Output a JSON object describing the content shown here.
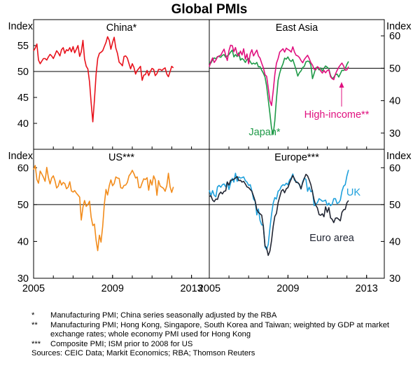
{
  "chart_data": {
    "type": "line",
    "title": "Global PMIs",
    "panels": [
      {
        "title": "China*",
        "position": "top-left",
        "ylabel": "Index",
        "ylim": [
          35,
          60
        ],
        "yticks": [
          40,
          45,
          50,
          55
        ],
        "series": [
          {
            "name": "China",
            "color": "#e8121c",
            "label": "",
            "start": 2005.0,
            "step": 0.0833,
            "values": [
              54,
              54.5,
              55.3,
              52.2,
              51.5,
              52,
              52.5,
              52.5,
              52.2,
              52.8,
              53.3,
              53,
              52.5,
              53.2,
              54,
              53.6,
              53,
              54.2,
              54.6,
              53.5,
              54.2,
              54,
              54.6,
              53.8,
              54.8,
              53.6,
              54.3,
              55,
              52.9,
              53.8,
              56,
              52.4,
              51,
              50.5,
              48,
              44,
              40.3,
              44.5,
              49.5,
              52.5,
              53.5,
              53.7,
              54,
              54.8,
              55.6,
              56.7,
              56,
              54.3,
              55.6,
              56.6,
              54.5,
              53.5,
              51.8,
              51.5,
              51.1,
              52.9,
              53,
              52.6,
              51.5,
              50.5,
              51.5,
              50.8,
              49.5,
              50.2,
              50.6,
              51,
              48.3,
              49.3,
              49.4,
              50.2,
              49.2,
              50,
              50.6,
              50.4,
              49.2,
              49.6,
              50.4,
              50.4,
              50.2,
              50.5,
              50.7,
              49.5,
              49,
              50,
              51,
              50.7
            ]
          }
        ]
      },
      {
        "title": "East Asia",
        "position": "top-right",
        "ylabel": "Index",
        "ylim": [
          25,
          65
        ],
        "yticks": [
          30,
          40,
          50,
          60
        ],
        "series": [
          {
            "name": "Japan*",
            "color": "#1f9a48",
            "label": "Japan*",
            "start": 2005.0,
            "step": 0.0833,
            "values": [
              52,
              51.6,
              52.6,
              53.2,
              52.9,
              53.6,
              53.6,
              53.4,
              54,
              54.2,
              53.4,
              53.8,
              54.2,
              55,
              55.6,
              53.5,
              54.2,
              53.6,
              54.8,
              52.5,
              53,
              52.6,
              51.8,
              52.7,
              53,
              52,
              51.3,
              51.6,
              51.3,
              51.8,
              50.4,
              50.5,
              49.4,
              48.5,
              47.3,
              44.5,
              40.3,
              36,
              31.5,
              29.6,
              33.8,
              40.5,
              46.3,
              48.5,
              50.2,
              51.4,
              53.1,
              52.8,
              53.5,
              52.5,
              52.1,
              52.7,
              51.1,
              49.5,
              47.6,
              48.6,
              49.2,
              50.2,
              50.6,
              52,
              52.2,
              52.1,
              51,
              46.8,
              48.4,
              50.1,
              50.3,
              49.5,
              50.1,
              49.2,
              50,
              50.7,
              50.3,
              49.8,
              47.8,
              46.8,
              47.2,
              48,
              48.2,
              47.3,
              48.3,
              49.4,
              49.3,
              49.9,
              51.2,
              52.1
            ]
          },
          {
            "name": "High-income**",
            "color": "#e0107f",
            "label": "High-income**",
            "start": 2005.0,
            "step": 0.0833,
            "values": [
              50.5,
              52,
              53.2,
              51.8,
              52.5,
              53.5,
              53.8,
              54,
              55,
              55.9,
              54,
              52.4,
              55.4,
              57.1,
              57,
              55.1,
              56.4,
              54.3,
              53.8,
              55.3,
              54.1,
              56,
              52.8,
              54.4,
              51.4,
              54.5,
              55.7,
              53.8,
              54.7,
              55.6,
              53.8,
              53.1,
              51.5,
              50.2,
              48,
              47.5,
              44,
              40,
              38.5,
              43,
              48,
              51.5,
              53,
              55,
              55.5,
              56,
              55,
              56.2,
              55.8,
              55.5,
              55,
              56.6,
              55,
              54,
              53.8,
              53.3,
              52.4,
              51.7,
              52.7,
              53.4,
              54,
              53,
              51.7,
              51,
              49.7,
              49.5,
              50.5,
              50.1,
              49.2,
              48.5,
              49.3,
              48.6,
              49.3,
              49.5,
              47.4,
              46.8,
              46.5,
              48.2,
              49.3,
              50.3,
              51,
              51.6,
              50.7,
              49.4,
              49.5,
              50.5
            ]
          }
        ]
      },
      {
        "title": "US***",
        "position": "bottom-left",
        "ylabel": "Index",
        "ylim": [
          30,
          65
        ],
        "yticks": [
          30,
          40,
          50,
          60
        ],
        "series": [
          {
            "name": "US",
            "color": "#f28c1c",
            "label": "",
            "start": 2005.0,
            "step": 0.0833,
            "values": [
              59.5,
              60.6,
              56.8,
              55.8,
              59.1,
              58.3,
              57.4,
              56.3,
              60.1,
              57.4,
              55.6,
              57.2,
              57.8,
              56.5,
              54.5,
              55,
              56.6,
              55.3,
              56,
              55.7,
              54.3,
              54.7,
              56.2,
              53.7,
              53.4,
              53.8,
              53.1,
              52.6,
              52,
              45.8,
              49.3,
              51.1,
              49.5,
              50,
              50.9,
              46.6,
              44.3,
              44.7,
              40.3,
              37.5,
              41.7,
              39.8,
              44.1,
              50,
              54.1,
              52.6,
              55.1,
              56.7,
              55.1,
              55.7,
              57.5,
              57.2,
              57.1,
              54.6,
              54.4,
              55.2,
              55.3,
              56,
              57.8,
              58.4,
              59.3,
              58.4,
              57.2,
              57.5,
              54.6,
              54.6,
              55.9,
              57,
              56.8,
              57.3,
              53.9,
              56.7,
              55.3,
              57.8,
              56.7,
              52.5,
              56.5,
              55,
              54.7,
              54.4,
              53.6,
              55.1,
              58.5,
              54.8,
              53.3,
              54.8
            ]
          }
        ]
      },
      {
        "title": "Europe***",
        "position": "bottom-right",
        "ylabel": "Index",
        "ylim": [
          30,
          65
        ],
        "yticks": [
          30,
          40,
          50,
          60
        ],
        "series": [
          {
            "name": "UK",
            "color": "#1ea0dc",
            "label": "UK",
            "start": 2005.0,
            "step": 0.0833,
            "values": [
              53.9,
              52.4,
              53.8,
              52.5,
              52.1,
              54.8,
              55.2,
              54.7,
              55.4,
              55.6,
              54.8,
              56.2,
              54.1,
              55.8,
              57.1,
              56.1,
              58.5,
              56.3,
              57.5,
              57.2,
              57.3,
              57.5,
              56.5,
              56.1,
              55.2,
              55.4,
              53.7,
              51.5,
              50.9,
              47.2,
              48.8,
              45.7,
              44.5,
              44.4,
              38.5,
              37.8,
              39.2,
              43.6,
              47.3,
              50.4,
              51.9,
              51.5,
              53.6,
              54,
              55,
              55.4,
              55.2,
              55.8,
              55.4,
              56.7,
              57.2,
              58.3,
              56.6,
              56.3,
              55.9,
              55.4,
              54.2,
              56.2,
              57.2,
              56.8,
              53.6,
              54.7,
              53.5,
              53.8,
              49.7,
              50.1,
              50.5,
              51.6,
              51.3,
              50.9,
              51,
              51.2,
              49.8,
              50.4,
              49.7,
              50.1,
              51.6,
              51.6,
              50.3,
              50.5,
              51.2,
              53.6,
              55,
              55.4,
              57.8,
              59.4
            ]
          },
          {
            "name": "Euro area",
            "color": "#222633",
            "label": "Euro area",
            "start": 2005.0,
            "step": 0.0833,
            "values": [
              52.2,
              52.4,
              51.2,
              50.8,
              51.5,
              51.4,
              52.8,
              53.4,
              52.9,
              53.6,
              53.7,
              56.1,
              55.3,
              56.6,
              56.7,
              56.9,
              57.2,
              57.6,
              56.5,
              56.6,
              56.1,
              56.3,
              55.6,
              54.8,
              54.6,
              54.1,
              53.6,
              52.3,
              51,
              48.6,
              47.9,
              47.5,
              47.1,
              44,
              38.8,
              38.2,
              36.2,
              37.4,
              40.2,
              44.1,
              46.8,
              47.6,
              50.5,
              52.1,
              53.7,
              54.1,
              53.2,
              54.3,
              54.6,
              55.9,
              56.9,
              57.9,
              57,
              56,
              56,
              55.5,
              54.3,
              55.9,
              57.1,
              58.2,
              57.8,
              56.7,
              55.4,
              53.4,
              51.2,
              49.8,
              49.1,
              47.3,
              47.1,
              47.5,
              46.7,
              49.4,
              47.9,
              49.2,
              46.4,
              46,
              45.1,
              46.3,
              46.4,
              46,
              45.6,
              47.9,
              48.6,
              48.7,
              50.5,
              51.1
            ]
          }
        ]
      }
    ],
    "xlim": [
      2005,
      2013.9
    ],
    "xticks": [
      2005,
      2009,
      2013
    ],
    "xtick_labels": [
      "2005",
      "2009",
      "2013"
    ]
  },
  "notes": [
    {
      "mark": "*",
      "text": "Manufacturing PMI; China series seasonally adjusted by the RBA"
    },
    {
      "mark": "**",
      "text": "Manufacturing PMI; Hong Kong, Singapore, South Korea and Taiwan; weighted by GDP at market exchange rates; whole economy PMI used for Hong Kong"
    },
    {
      "mark": "***",
      "text": "Composite PMI; ISM prior to 2008 for US"
    }
  ],
  "sources": "Sources: CEIC Data; Markit Economics; RBA; Thomson Reuters"
}
